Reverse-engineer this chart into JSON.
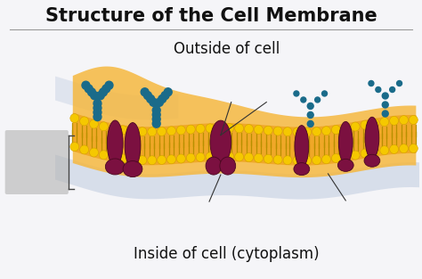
{
  "title": "Structure of the Cell Membrane",
  "label_outside": "Outside of cell",
  "label_inside": "Inside of cell (cytoplasm)",
  "bg_color": "#f5f5f8",
  "title_color": "#111111",
  "title_fontsize": 15,
  "label_fontsize": 12,
  "head_color": "#F5C800",
  "head_edge": "#D4A000",
  "tail_color": "#B89000",
  "protein_color": "#7B1040",
  "protein_edge": "#4A0820",
  "glyco_color": "#1A6B8A",
  "membrane_fill": "#F0A828",
  "fluid_fill": "#F5B840",
  "shadow_color": "#C0CCE0",
  "gray_box_color": "#B8B8B8",
  "line_color": "#333333",
  "sep_color": "#999999"
}
